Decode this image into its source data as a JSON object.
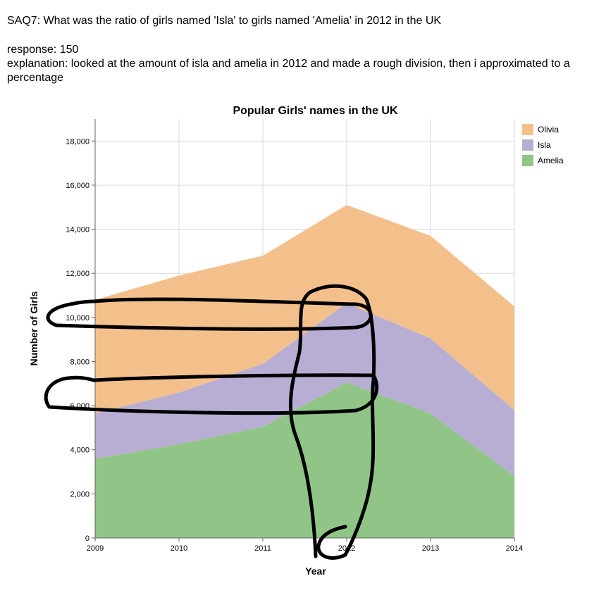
{
  "question_text": "SAQ7: What was the ratio of girls named 'Isla' to girls named 'Amelia' in 2012 in the UK",
  "response_text": "response: 150",
  "explanation_text": "explanation: looked at the amount of isla and amelia in 2012 and made a rough division, then i approximated to a percentage",
  "chart_data": {
    "type": "area",
    "stacked": true,
    "title": "Popular Girls' names in the UK",
    "xlabel": "Year",
    "ylabel": "Number of Girls",
    "x": [
      "2009",
      "2010",
      "2011",
      "2012",
      "2013",
      "2014"
    ],
    "ylim": [
      0,
      19000
    ],
    "yticks": [
      "0",
      "2,000",
      "4,000",
      "6,000",
      "8,000",
      "10,000",
      "12,000",
      "14,000",
      "16,000",
      "18,000"
    ],
    "series": [
      {
        "name": "Amelia",
        "color": "#90c587",
        "values": [
          3600,
          4250,
          5050,
          7050,
          5650,
          2800
        ]
      },
      {
        "name": "Isla",
        "color": "#b8aed4",
        "values": [
          2050,
          2350,
          2850,
          3600,
          3400,
          3000
        ]
      },
      {
        "name": "Olivia",
        "color": "#f3c08c",
        "values": [
          5150,
          5300,
          4900,
          4450,
          4650,
          4700
        ]
      }
    ],
    "legend": {
      "position": "top-right",
      "entries": [
        "Olivia",
        "Isla",
        "Amelia"
      ]
    },
    "grid": true,
    "annotation": "hand-drawn black scribble marks over the chart (two loops around y≈10,000 and y≈6,500, vertical loop at 2012)"
  }
}
